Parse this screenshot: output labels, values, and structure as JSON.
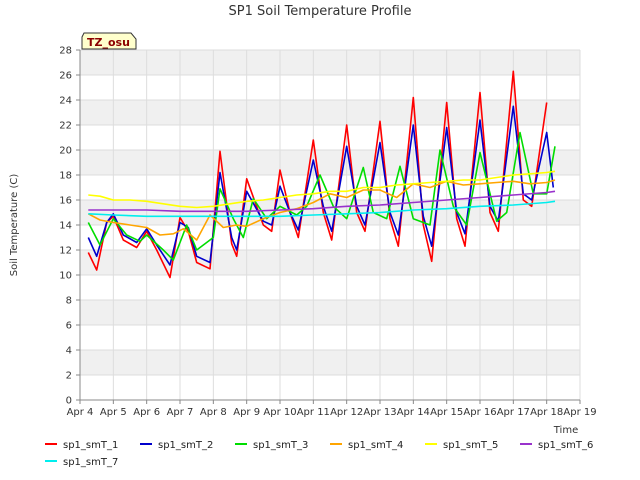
{
  "chart_data": {
    "type": "line",
    "title": "SP1 Soil Temperature Profile",
    "xlabel": "Time",
    "ylabel": "Soil Temperature (C)",
    "badge": "TZ_osu",
    "xlim": [
      4,
      19
    ],
    "ylim": [
      0,
      28
    ],
    "x_ticks": [
      {
        "x": 4,
        "label": "Apr 4"
      },
      {
        "x": 5,
        "label": "Apr 5"
      },
      {
        "x": 6,
        "label": "Apr 6"
      },
      {
        "x": 7,
        "label": "Apr 7"
      },
      {
        "x": 8,
        "label": "Apr 8"
      },
      {
        "x": 9,
        "label": "Apr 9"
      },
      {
        "x": 10,
        "label": "Apr 10"
      },
      {
        "x": 11,
        "label": "Apr 11"
      },
      {
        "x": 12,
        "label": "Apr 12"
      },
      {
        "x": 13,
        "label": "Apr 13"
      },
      {
        "x": 14,
        "label": "Apr 14"
      },
      {
        "x": 15,
        "label": "Apr 15"
      },
      {
        "x": 16,
        "label": "Apr 16"
      },
      {
        "x": 17,
        "label": "Apr 17"
      },
      {
        "x": 18,
        "label": "Apr 18"
      },
      {
        "x": 19,
        "label": "Apr 19"
      }
    ],
    "y_ticks": [
      0,
      2,
      4,
      6,
      8,
      10,
      12,
      14,
      16,
      18,
      20,
      22,
      24,
      26,
      28
    ],
    "grid": true,
    "legend_position": "bottom",
    "series": [
      {
        "name": "sp1_smT_1",
        "color": "#ff0000",
        "x": [
          4.25,
          4.5,
          4.8,
          5.0,
          5.3,
          5.7,
          6.0,
          6.3,
          6.7,
          7.0,
          7.25,
          7.5,
          7.9,
          8.2,
          8.55,
          8.7,
          9.0,
          9.5,
          9.75,
          10.0,
          10.3,
          10.55,
          11.0,
          11.3,
          11.55,
          12.0,
          12.3,
          12.55,
          13.0,
          13.3,
          13.55,
          14.0,
          14.3,
          14.55,
          15.0,
          15.3,
          15.55,
          16.0,
          16.3,
          16.55,
          17.0,
          17.3,
          17.55,
          18.0
        ],
        "y": [
          11.8,
          10.4,
          14.2,
          14.7,
          12.8,
          12.2,
          13.5,
          12.0,
          9.8,
          14.6,
          13.5,
          11.0,
          10.5,
          19.9,
          12.5,
          11.5,
          17.7,
          14.0,
          13.5,
          18.4,
          15.0,
          13.0,
          20.8,
          15.0,
          12.8,
          22.0,
          15.0,
          13.5,
          22.3,
          14.5,
          12.3,
          24.2,
          14.0,
          11.1,
          23.8,
          14.5,
          12.3,
          24.6,
          15.0,
          13.5,
          26.3,
          16.0,
          15.5,
          23.8
        ]
      },
      {
        "name": "sp1_smT_2",
        "color": "#0000cc",
        "x": [
          4.25,
          4.5,
          4.8,
          5.0,
          5.3,
          5.7,
          6.0,
          6.3,
          6.7,
          7.0,
          7.25,
          7.5,
          7.9,
          8.2,
          8.55,
          8.7,
          9.0,
          9.5,
          9.75,
          10.0,
          10.3,
          10.55,
          11.0,
          11.3,
          11.55,
          12.0,
          12.3,
          12.55,
          13.0,
          13.3,
          13.55,
          14.0,
          14.3,
          14.55,
          15.0,
          15.3,
          15.55,
          16.0,
          16.3,
          16.55,
          17.0,
          17.3,
          17.55,
          18.0,
          18.2
        ],
        "y": [
          13.0,
          11.5,
          14.2,
          14.9,
          13.2,
          12.6,
          13.7,
          12.4,
          10.8,
          14.2,
          13.8,
          11.5,
          11.0,
          18.2,
          13.0,
          12.0,
          16.7,
          14.3,
          14.0,
          17.1,
          15.0,
          13.6,
          19.2,
          15.5,
          13.5,
          20.3,
          15.5,
          14.0,
          20.6,
          15.0,
          13.2,
          22.0,
          14.7,
          12.3,
          21.8,
          15.0,
          13.3,
          22.4,
          15.5,
          14.3,
          23.5,
          16.5,
          16.0,
          21.4,
          17.0
        ]
      },
      {
        "name": "sp1_smT_3",
        "color": "#00dd00",
        "x": [
          4.25,
          4.6,
          5.0,
          5.4,
          5.8,
          6.0,
          6.5,
          6.8,
          7.2,
          7.5,
          8.0,
          8.2,
          8.6,
          8.9,
          9.2,
          9.6,
          10.0,
          10.5,
          10.8,
          11.2,
          11.6,
          12.0,
          12.5,
          12.8,
          13.2,
          13.6,
          14.0,
          14.5,
          14.8,
          15.2,
          15.6,
          16.0,
          16.5,
          16.8,
          17.2,
          17.6,
          18.0,
          18.25
        ],
        "y": [
          14.2,
          12.4,
          14.5,
          13.2,
          12.7,
          13.2,
          12.0,
          11.2,
          14.0,
          12.0,
          13.0,
          16.9,
          14.5,
          13.0,
          16.1,
          14.5,
          15.5,
          14.8,
          15.5,
          18.0,
          15.5,
          14.5,
          18.6,
          15.0,
          14.5,
          18.7,
          14.5,
          14.0,
          20.0,
          15.5,
          14.0,
          19.8,
          14.3,
          15.0,
          21.4,
          16.5,
          16.5,
          20.3
        ]
      },
      {
        "name": "sp1_smT_4",
        "color": "#ffa500",
        "x": [
          4.25,
          4.6,
          5.0,
          5.5,
          6.0,
          6.4,
          6.8,
          7.1,
          7.5,
          7.9,
          8.3,
          8.7,
          9.0,
          9.5,
          10.0,
          10.5,
          11.0,
          11.5,
          12.0,
          12.5,
          13.0,
          13.5,
          14.0,
          14.5,
          15.0,
          15.5,
          16.0,
          16.5,
          17.0,
          17.5,
          18.0,
          18.25
        ],
        "y": [
          14.9,
          14.4,
          14.2,
          14.0,
          13.8,
          13.2,
          13.3,
          13.7,
          12.8,
          14.8,
          13.8,
          14.0,
          13.9,
          14.5,
          15.0,
          15.3,
          15.8,
          16.5,
          16.2,
          16.8,
          16.8,
          16.2,
          17.3,
          17.0,
          17.5,
          17.2,
          17.3,
          17.4,
          17.5,
          17.3,
          17.4,
          17.6
        ]
      },
      {
        "name": "sp1_smT_5",
        "color": "#ffff00",
        "x": [
          4.25,
          4.6,
          5.0,
          5.5,
          6.0,
          6.5,
          7.0,
          7.5,
          8.0,
          8.5,
          9.0,
          9.5,
          10.0,
          10.5,
          11.0,
          11.5,
          12.0,
          12.5,
          13.0,
          13.5,
          14.0,
          14.5,
          15.0,
          15.5,
          16.0,
          16.5,
          17.0,
          17.5,
          18.0,
          18.25
        ],
        "y": [
          16.4,
          16.3,
          16.0,
          16.0,
          15.9,
          15.7,
          15.5,
          15.4,
          15.5,
          15.7,
          15.9,
          16.0,
          16.2,
          16.4,
          16.5,
          16.7,
          16.7,
          17.0,
          17.0,
          17.2,
          17.3,
          17.4,
          17.5,
          17.6,
          17.6,
          17.8,
          18.0,
          18.1,
          18.2,
          18.3
        ]
      },
      {
        "name": "sp1_smT_6",
        "color": "#9932cc",
        "x": [
          4.25,
          5.0,
          6.0,
          7.0,
          8.0,
          9.0,
          10.0,
          11.0,
          12.0,
          13.0,
          14.0,
          15.0,
          16.0,
          17.0,
          18.0,
          18.25
        ],
        "y": [
          15.2,
          15.2,
          15.2,
          15.1,
          15.1,
          15.1,
          15.2,
          15.3,
          15.5,
          15.6,
          15.8,
          16.0,
          16.2,
          16.4,
          16.6,
          16.7
        ]
      },
      {
        "name": "sp1_smT_7",
        "color": "#00eeee",
        "x": [
          4.25,
          5.0,
          6.0,
          7.0,
          8.0,
          9.0,
          10.0,
          11.0,
          12.0,
          13.0,
          14.0,
          15.0,
          16.0,
          17.0,
          18.0,
          18.25
        ],
        "y": [
          14.9,
          14.8,
          14.7,
          14.7,
          14.7,
          14.7,
          14.7,
          14.8,
          14.9,
          15.0,
          15.2,
          15.3,
          15.5,
          15.6,
          15.8,
          15.9
        ]
      }
    ]
  }
}
